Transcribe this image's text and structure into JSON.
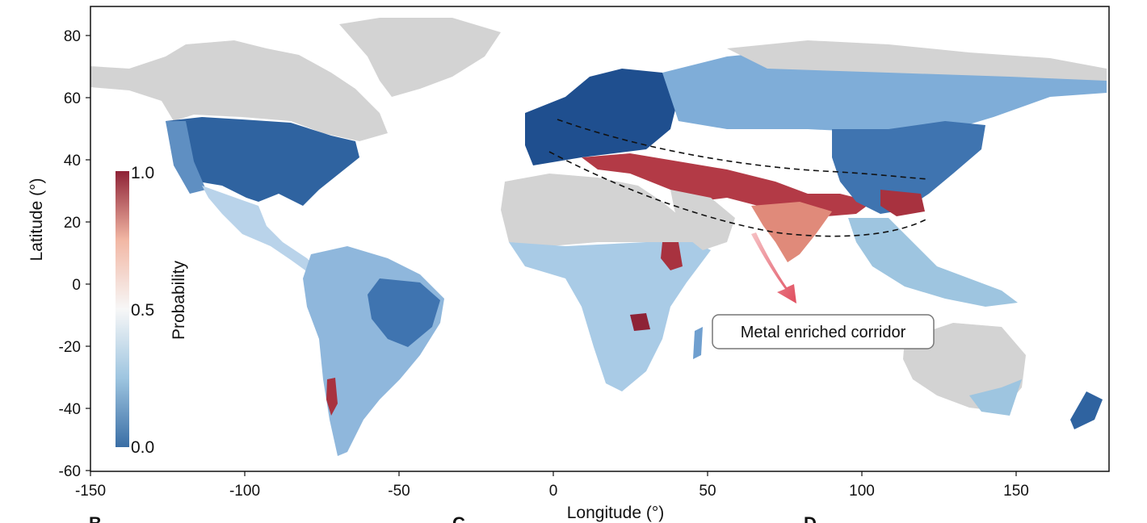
{
  "map": {
    "x_axis": {
      "title": "Longitude (°)",
      "ticks": [
        "-150",
        "-100",
        "-50",
        "0",
        "50",
        "100",
        "150"
      ],
      "range": [
        -150,
        180
      ]
    },
    "y_axis": {
      "title": "Latitude (°)",
      "ticks": [
        "80",
        "60",
        "40",
        "20",
        "0",
        "-20",
        "-40",
        "-60"
      ],
      "range": [
        -60,
        90
      ]
    },
    "land_color": "#d3d3d3",
    "colorbar": {
      "label": "Probability",
      "tick_top": "1.0",
      "tick_mid": "0.5",
      "tick_bottom": "0.0",
      "colors": [
        "#3a6ea5",
        "#9ec5e0",
        "#f7f7f7",
        "#f2b7a4",
        "#8e2236"
      ]
    },
    "annotation": {
      "text": "Metal enriched corridor",
      "arrow_color": "#e8707a"
    },
    "panel_letters": [
      "B",
      "C",
      "D"
    ]
  }
}
